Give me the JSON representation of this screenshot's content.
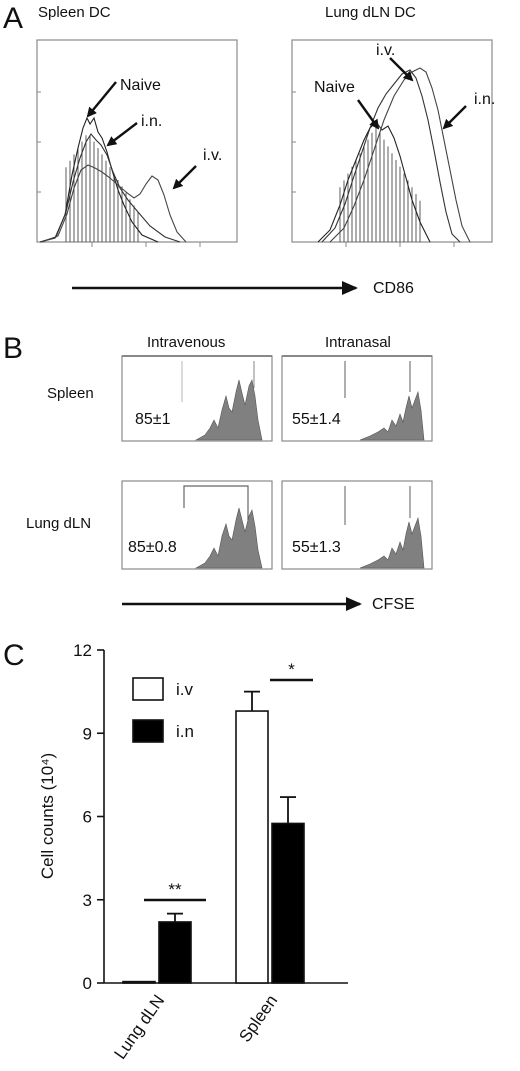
{
  "panel_a": {
    "label": "A",
    "left_title": "Spleen DC",
    "right_title": "Lung dLN DC",
    "left_annotations": {
      "naive": "Naive",
      "in": "i.n.",
      "iv": "i.v."
    },
    "right_annotations": {
      "naive": "Naive",
      "iv": "i.v.",
      "in": "i.n."
    },
    "axis_label": "CD86"
  },
  "panel_b": {
    "label": "B",
    "col_headers": [
      "Intravenous",
      "Intranasal"
    ],
    "row_labels": [
      "Spleen",
      "Lung dLN"
    ],
    "values": [
      [
        "85±1",
        "55±1.4"
      ],
      [
        "85±0.8",
        "55±1.3"
      ]
    ],
    "axis_label": "CFSE",
    "fill_color": "#808080"
  },
  "panel_c": {
    "label": "C",
    "significance": [
      "**",
      "*"
    ]
  },
  "chart_data": {
    "type": "bar",
    "categories": [
      "Lung dLN",
      "Spleen"
    ],
    "series": [
      {
        "name": "i.v",
        "values": [
          0.05,
          9.8
        ],
        "errors": [
          0.0,
          0.7
        ],
        "fill": "#ffffff"
      },
      {
        "name": "i.n",
        "values": [
          2.2,
          5.75
        ],
        "errors": [
          0.3,
          0.95
        ],
        "fill": "#000000"
      }
    ],
    "ylabel": "Cell counts (10⁴)",
    "ylim": [
      0,
      12
    ],
    "yticks": [
      0,
      3,
      6,
      9,
      12
    ],
    "legend_position": "top-left"
  }
}
